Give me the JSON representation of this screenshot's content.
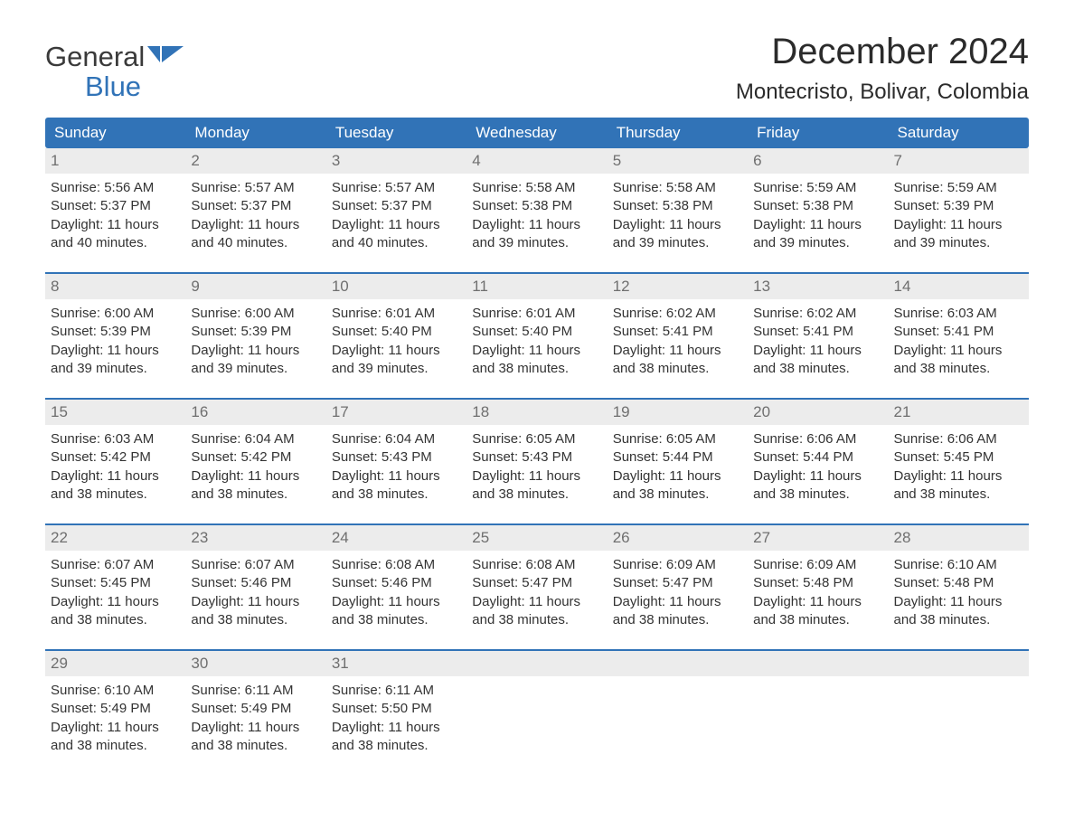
{
  "logo": {
    "word1": "General",
    "word2": "Blue",
    "accent_color": "#3173b7",
    "text_color": "#3a3a3a"
  },
  "title": "December 2024",
  "subtitle": "Montecristo, Bolivar, Colombia",
  "header_bg": "#3173b7",
  "header_text_color": "#ffffff",
  "daynum_bg": "#ececec",
  "daynum_color": "#6f6f6f",
  "content_color": "#333333",
  "rule_color": "#3173b7",
  "background_color": "#ffffff",
  "font_sizes": {
    "title": 40,
    "subtitle": 24,
    "header_day": 17,
    "day_number": 17,
    "content": 15,
    "logo": 31
  },
  "day_headers": [
    "Sunday",
    "Monday",
    "Tuesday",
    "Wednesday",
    "Thursday",
    "Friday",
    "Saturday"
  ],
  "weeks": [
    [
      {
        "n": "1",
        "sunrise": "Sunrise: 5:56 AM",
        "sunset": "Sunset: 5:37 PM",
        "d1": "Daylight: 11 hours",
        "d2": "and 40 minutes."
      },
      {
        "n": "2",
        "sunrise": "Sunrise: 5:57 AM",
        "sunset": "Sunset: 5:37 PM",
        "d1": "Daylight: 11 hours",
        "d2": "and 40 minutes."
      },
      {
        "n": "3",
        "sunrise": "Sunrise: 5:57 AM",
        "sunset": "Sunset: 5:37 PM",
        "d1": "Daylight: 11 hours",
        "d2": "and 40 minutes."
      },
      {
        "n": "4",
        "sunrise": "Sunrise: 5:58 AM",
        "sunset": "Sunset: 5:38 PM",
        "d1": "Daylight: 11 hours",
        "d2": "and 39 minutes."
      },
      {
        "n": "5",
        "sunrise": "Sunrise: 5:58 AM",
        "sunset": "Sunset: 5:38 PM",
        "d1": "Daylight: 11 hours",
        "d2": "and 39 minutes."
      },
      {
        "n": "6",
        "sunrise": "Sunrise: 5:59 AM",
        "sunset": "Sunset: 5:38 PM",
        "d1": "Daylight: 11 hours",
        "d2": "and 39 minutes."
      },
      {
        "n": "7",
        "sunrise": "Sunrise: 5:59 AM",
        "sunset": "Sunset: 5:39 PM",
        "d1": "Daylight: 11 hours",
        "d2": "and 39 minutes."
      }
    ],
    [
      {
        "n": "8",
        "sunrise": "Sunrise: 6:00 AM",
        "sunset": "Sunset: 5:39 PM",
        "d1": "Daylight: 11 hours",
        "d2": "and 39 minutes."
      },
      {
        "n": "9",
        "sunrise": "Sunrise: 6:00 AM",
        "sunset": "Sunset: 5:39 PM",
        "d1": "Daylight: 11 hours",
        "d2": "and 39 minutes."
      },
      {
        "n": "10",
        "sunrise": "Sunrise: 6:01 AM",
        "sunset": "Sunset: 5:40 PM",
        "d1": "Daylight: 11 hours",
        "d2": "and 39 minutes."
      },
      {
        "n": "11",
        "sunrise": "Sunrise: 6:01 AM",
        "sunset": "Sunset: 5:40 PM",
        "d1": "Daylight: 11 hours",
        "d2": "and 38 minutes."
      },
      {
        "n": "12",
        "sunrise": "Sunrise: 6:02 AM",
        "sunset": "Sunset: 5:41 PM",
        "d1": "Daylight: 11 hours",
        "d2": "and 38 minutes."
      },
      {
        "n": "13",
        "sunrise": "Sunrise: 6:02 AM",
        "sunset": "Sunset: 5:41 PM",
        "d1": "Daylight: 11 hours",
        "d2": "and 38 minutes."
      },
      {
        "n": "14",
        "sunrise": "Sunrise: 6:03 AM",
        "sunset": "Sunset: 5:41 PM",
        "d1": "Daylight: 11 hours",
        "d2": "and 38 minutes."
      }
    ],
    [
      {
        "n": "15",
        "sunrise": "Sunrise: 6:03 AM",
        "sunset": "Sunset: 5:42 PM",
        "d1": "Daylight: 11 hours",
        "d2": "and 38 minutes."
      },
      {
        "n": "16",
        "sunrise": "Sunrise: 6:04 AM",
        "sunset": "Sunset: 5:42 PM",
        "d1": "Daylight: 11 hours",
        "d2": "and 38 minutes."
      },
      {
        "n": "17",
        "sunrise": "Sunrise: 6:04 AM",
        "sunset": "Sunset: 5:43 PM",
        "d1": "Daylight: 11 hours",
        "d2": "and 38 minutes."
      },
      {
        "n": "18",
        "sunrise": "Sunrise: 6:05 AM",
        "sunset": "Sunset: 5:43 PM",
        "d1": "Daylight: 11 hours",
        "d2": "and 38 minutes."
      },
      {
        "n": "19",
        "sunrise": "Sunrise: 6:05 AM",
        "sunset": "Sunset: 5:44 PM",
        "d1": "Daylight: 11 hours",
        "d2": "and 38 minutes."
      },
      {
        "n": "20",
        "sunrise": "Sunrise: 6:06 AM",
        "sunset": "Sunset: 5:44 PM",
        "d1": "Daylight: 11 hours",
        "d2": "and 38 minutes."
      },
      {
        "n": "21",
        "sunrise": "Sunrise: 6:06 AM",
        "sunset": "Sunset: 5:45 PM",
        "d1": "Daylight: 11 hours",
        "d2": "and 38 minutes."
      }
    ],
    [
      {
        "n": "22",
        "sunrise": "Sunrise: 6:07 AM",
        "sunset": "Sunset: 5:45 PM",
        "d1": "Daylight: 11 hours",
        "d2": "and 38 minutes."
      },
      {
        "n": "23",
        "sunrise": "Sunrise: 6:07 AM",
        "sunset": "Sunset: 5:46 PM",
        "d1": "Daylight: 11 hours",
        "d2": "and 38 minutes."
      },
      {
        "n": "24",
        "sunrise": "Sunrise: 6:08 AM",
        "sunset": "Sunset: 5:46 PM",
        "d1": "Daylight: 11 hours",
        "d2": "and 38 minutes."
      },
      {
        "n": "25",
        "sunrise": "Sunrise: 6:08 AM",
        "sunset": "Sunset: 5:47 PM",
        "d1": "Daylight: 11 hours",
        "d2": "and 38 minutes."
      },
      {
        "n": "26",
        "sunrise": "Sunrise: 6:09 AM",
        "sunset": "Sunset: 5:47 PM",
        "d1": "Daylight: 11 hours",
        "d2": "and 38 minutes."
      },
      {
        "n": "27",
        "sunrise": "Sunrise: 6:09 AM",
        "sunset": "Sunset: 5:48 PM",
        "d1": "Daylight: 11 hours",
        "d2": "and 38 minutes."
      },
      {
        "n": "28",
        "sunrise": "Sunrise: 6:10 AM",
        "sunset": "Sunset: 5:48 PM",
        "d1": "Daylight: 11 hours",
        "d2": "and 38 minutes."
      }
    ],
    [
      {
        "n": "29",
        "sunrise": "Sunrise: 6:10 AM",
        "sunset": "Sunset: 5:49 PM",
        "d1": "Daylight: 11 hours",
        "d2": "and 38 minutes."
      },
      {
        "n": "30",
        "sunrise": "Sunrise: 6:11 AM",
        "sunset": "Sunset: 5:49 PM",
        "d1": "Daylight: 11 hours",
        "d2": "and 38 minutes."
      },
      {
        "n": "31",
        "sunrise": "Sunrise: 6:11 AM",
        "sunset": "Sunset: 5:50 PM",
        "d1": "Daylight: 11 hours",
        "d2": "and 38 minutes."
      },
      {
        "n": "",
        "sunrise": "",
        "sunset": "",
        "d1": "",
        "d2": ""
      },
      {
        "n": "",
        "sunrise": "",
        "sunset": "",
        "d1": "",
        "d2": ""
      },
      {
        "n": "",
        "sunrise": "",
        "sunset": "",
        "d1": "",
        "d2": ""
      },
      {
        "n": "",
        "sunrise": "",
        "sunset": "",
        "d1": "",
        "d2": ""
      }
    ]
  ]
}
